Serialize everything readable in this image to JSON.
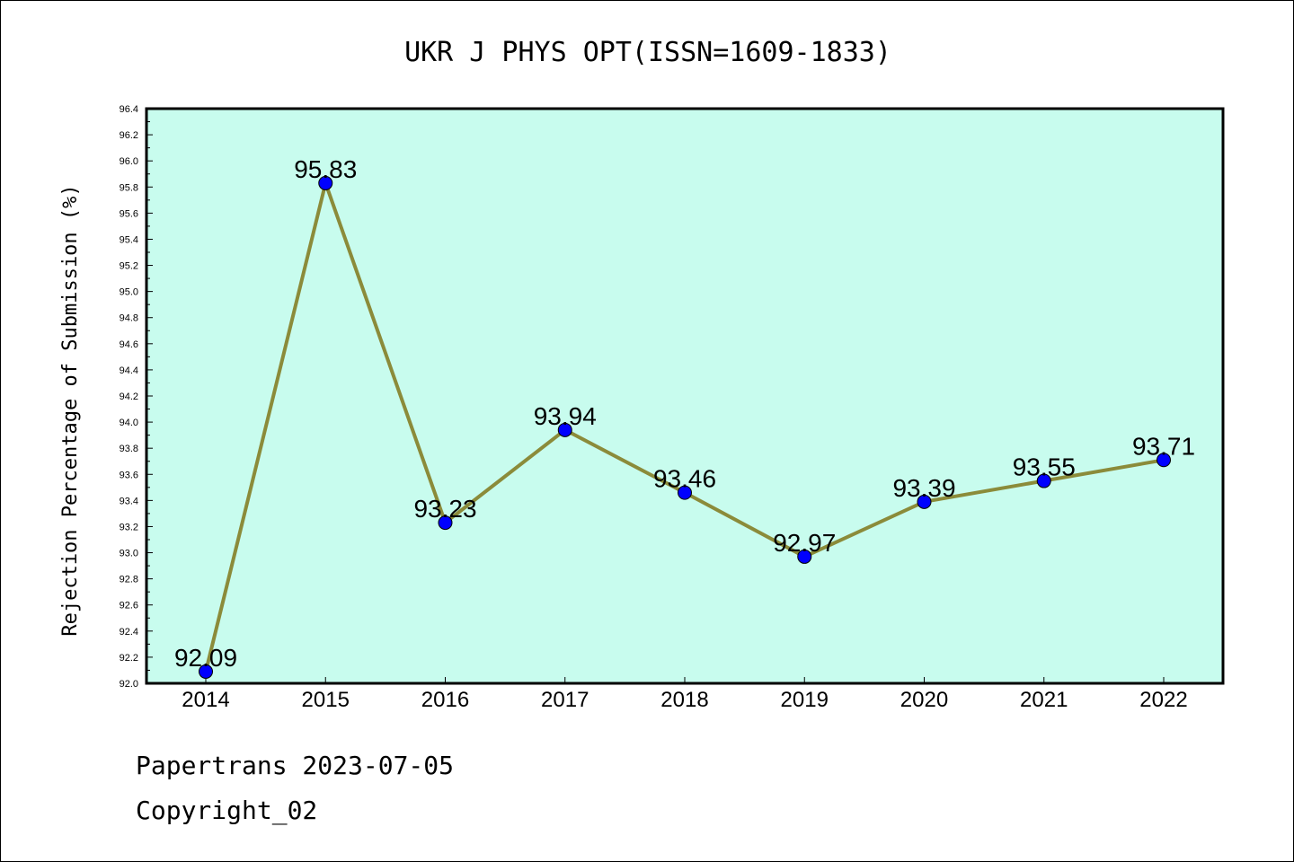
{
  "chart_data": {
    "type": "line",
    "title": "UKR J PHYS OPT(ISSN=1609-1833)",
    "xlabel": "",
    "ylabel": "Rejection Percentage of Submission (%)",
    "categories": [
      "2014",
      "2015",
      "2016",
      "2017",
      "2018",
      "2019",
      "2020",
      "2021",
      "2022"
    ],
    "series": [
      {
        "values": [
          92.09,
          95.83,
          93.23,
          93.94,
          93.46,
          92.97,
          93.39,
          93.55,
          93.71
        ]
      }
    ],
    "data_labels": [
      "92.09",
      "95.83",
      "93.23",
      "93.94",
      "93.46",
      "92.97",
      "93.39",
      "93.55",
      "93.71"
    ],
    "ylim": [
      92.0,
      96.4
    ],
    "yticks": [
      "92.0",
      "92.2",
      "92.4",
      "92.6",
      "92.8",
      "93.0",
      "93.2",
      "93.4",
      "93.6",
      "93.8",
      "94.0",
      "94.2",
      "94.4",
      "94.6",
      "94.8",
      "95.0",
      "95.2",
      "95.4",
      "95.6",
      "95.8",
      "96.0",
      "96.2",
      "96.4"
    ],
    "grid": false,
    "legend": "none",
    "colors": {
      "plot_background": "#c8fcee",
      "line": "#8b8b3a",
      "marker": "#0000ff"
    }
  },
  "footer": {
    "line1": "Papertrans 2023-07-05",
    "line2": "Copyright_02"
  }
}
